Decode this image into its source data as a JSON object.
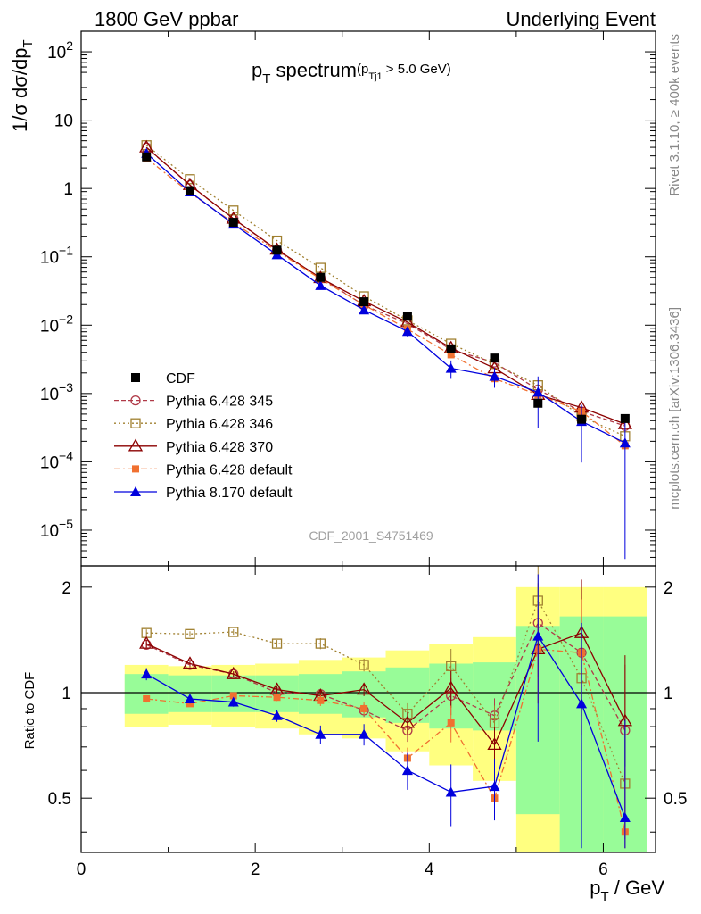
{
  "header": {
    "left": "1800 GeV ppbar",
    "right": "Underlying Event"
  },
  "side": {
    "top": "Rivet 3.1.10, ≥ 400k events",
    "bottom": "mcplots.cern.ch [arXiv:1306.3436]"
  },
  "colors": {
    "data": "#000000",
    "p345": "#b03a48",
    "p346": "#a08030",
    "p370": "#8b0000",
    "p428def": "#f07030",
    "p8170": "#0000dd",
    "band_inner": "#98fc98",
    "band_outer": "#ffff80"
  },
  "chart_data": {
    "type": "line",
    "analysis": "CDF_2001_S4751469",
    "title_main": "p",
    "title_sub": "T",
    "title_rest": " spectrum",
    "title_cut_pre": "(p",
    "title_cut_sub": "Tj1",
    "title_cut_post": " > 5.0 GeV)",
    "ylabel_top": "1/σ dσ/dp",
    "ylabel_top_sub": "T",
    "ylabel_bottom": "Ratio to CDF",
    "xlabel_main": "p",
    "xlabel_sub": "T",
    "xlabel_rest": " / GeV",
    "xlim": [
      0,
      6.6
    ],
    "ylim_top": [
      3e-06,
      200
    ],
    "ylim_ratio": [
      0.35,
      2.3
    ],
    "x_ticks": [
      "0",
      "2",
      "4",
      "6"
    ],
    "y_ticks_top": [
      {
        "base": "10",
        "exp": "2"
      },
      {
        "base": "10",
        "exp": ""
      },
      {
        "base": "1",
        "exp": ""
      },
      {
        "base": "10",
        "exp": "−1"
      },
      {
        "base": "10",
        "exp": "−2"
      },
      {
        "base": "10",
        "exp": "−3"
      },
      {
        "base": "10",
        "exp": "−4"
      },
      {
        "base": "10",
        "exp": "−5"
      }
    ],
    "y_ticks_ratio": [
      "0.5",
      "1",
      "2"
    ],
    "x": [
      0.75,
      1.25,
      1.75,
      2.25,
      2.75,
      3.25,
      3.75,
      4.25,
      4.75,
      5.25,
      5.75,
      6.25
    ],
    "bins": [
      [
        0.5,
        1.0
      ],
      [
        1.0,
        1.5
      ],
      [
        1.5,
        2.0
      ],
      [
        2.0,
        2.5
      ],
      [
        2.5,
        3.0
      ],
      [
        3.0,
        3.5
      ],
      [
        3.5,
        4.0
      ],
      [
        4.0,
        4.5
      ],
      [
        4.5,
        5.0
      ],
      [
        5.0,
        5.5
      ],
      [
        5.5,
        6.0
      ],
      [
        6.0,
        6.5
      ]
    ],
    "data": {
      "name": "CDF",
      "values": [
        2.9,
        0.93,
        0.32,
        0.125,
        0.05,
        0.022,
        0.0135,
        0.0045,
        0.0033,
        0.00072,
        0.00042,
        0.00043
      ]
    },
    "band_inner": [
      0.13,
      0.12,
      0.12,
      0.12,
      0.13,
      0.15,
      0.18,
      0.21,
      0.22,
      0.55,
      0.65,
      0.65
    ],
    "band_outer": [
      0.2,
      0.19,
      0.2,
      0.21,
      0.24,
      0.26,
      0.32,
      0.38,
      0.44,
      1.0,
      1.0,
      1.0
    ],
    "series": [
      {
        "name": "Pythia 6.428 345",
        "key": "p345",
        "style": "dashed",
        "marker": "open-circle",
        "ratio": [
          1.37,
          1.2,
          1.13,
          1.0,
          0.99,
          0.89,
          0.78,
          0.98,
          0.86,
          1.58,
          1.3,
          0.78
        ]
      },
      {
        "name": "Pythia 6.428 346",
        "key": "p346",
        "style": "dotted",
        "marker": "open-square",
        "ratio": [
          1.48,
          1.47,
          1.49,
          1.38,
          1.38,
          1.2,
          0.87,
          1.19,
          0.82,
          1.83,
          1.1,
          0.55
        ]
      },
      {
        "name": "Pythia 6.428 370",
        "key": "p370",
        "style": "solid",
        "marker": "open-triangle",
        "ratio": [
          1.38,
          1.21,
          1.13,
          1.02,
          0.98,
          1.02,
          0.82,
          1.03,
          0.71,
          1.33,
          1.48,
          0.83
        ]
      },
      {
        "name": "Pythia 6.428 default",
        "key": "p428def",
        "style": "dashdot",
        "marker": "filled-square",
        "ratio": [
          0.96,
          0.93,
          0.98,
          0.97,
          0.95,
          0.9,
          0.65,
          0.82,
          0.5,
          1.33,
          1.3,
          0.4
        ]
      },
      {
        "name": "Pythia 8.170 default",
        "key": "p8170",
        "style": "solid",
        "marker": "filled-triangle",
        "ratio": [
          1.13,
          0.96,
          0.94,
          0.86,
          0.76,
          0.76,
          0.6,
          0.52,
          0.54,
          1.45,
          0.93,
          0.44
        ]
      }
    ]
  }
}
